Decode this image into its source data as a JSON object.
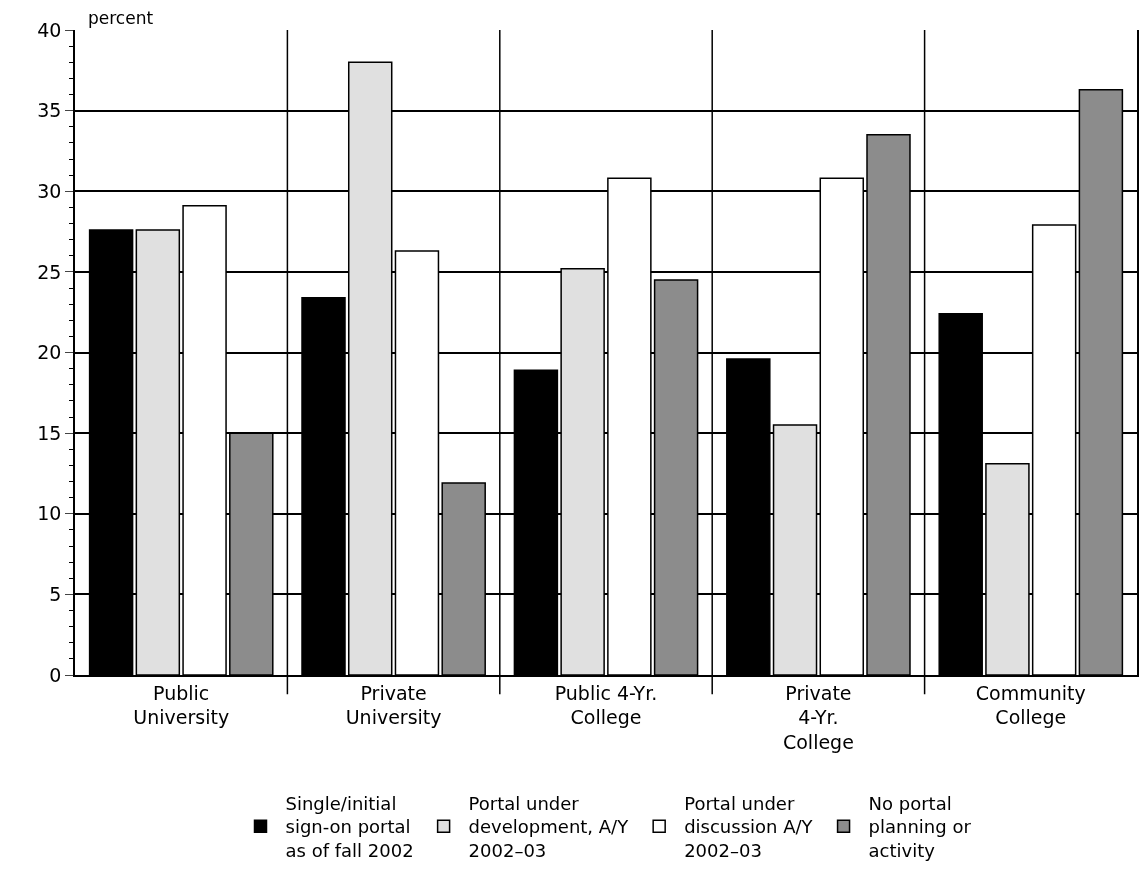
{
  "chart_data": {
    "type": "bar",
    "ylabel": "percent",
    "categories": [
      "Public University",
      "Private University",
      "Public 4-Yr. College",
      "Private 4-Yr. College",
      "Community College"
    ],
    "series": [
      {
        "name": "Single/initial sign-on portal as of fall 2002",
        "color": "#000000",
        "values": [
          27.6,
          23.4,
          18.9,
          19.6,
          22.4
        ]
      },
      {
        "name": "Portal under development, A/Y 2002–03",
        "color": "#e0e0e0",
        "values": [
          27.6,
          38.0,
          25.2,
          15.5,
          13.1
        ]
      },
      {
        "name": "Portal under discussion A/Y 2002–03",
        "color": "#ffffff",
        "values": [
          29.1,
          26.3,
          30.8,
          30.8,
          27.9
        ]
      },
      {
        "name": "No portal planning or activity",
        "color": "#8c8c8c",
        "values": [
          15.0,
          11.9,
          24.5,
          33.5,
          36.3
        ]
      }
    ],
    "ylim": [
      0,
      40
    ],
    "yticks": [
      0,
      5,
      10,
      15,
      20,
      25,
      30,
      35,
      40
    ],
    "grid": true,
    "legend": "bottom"
  }
}
